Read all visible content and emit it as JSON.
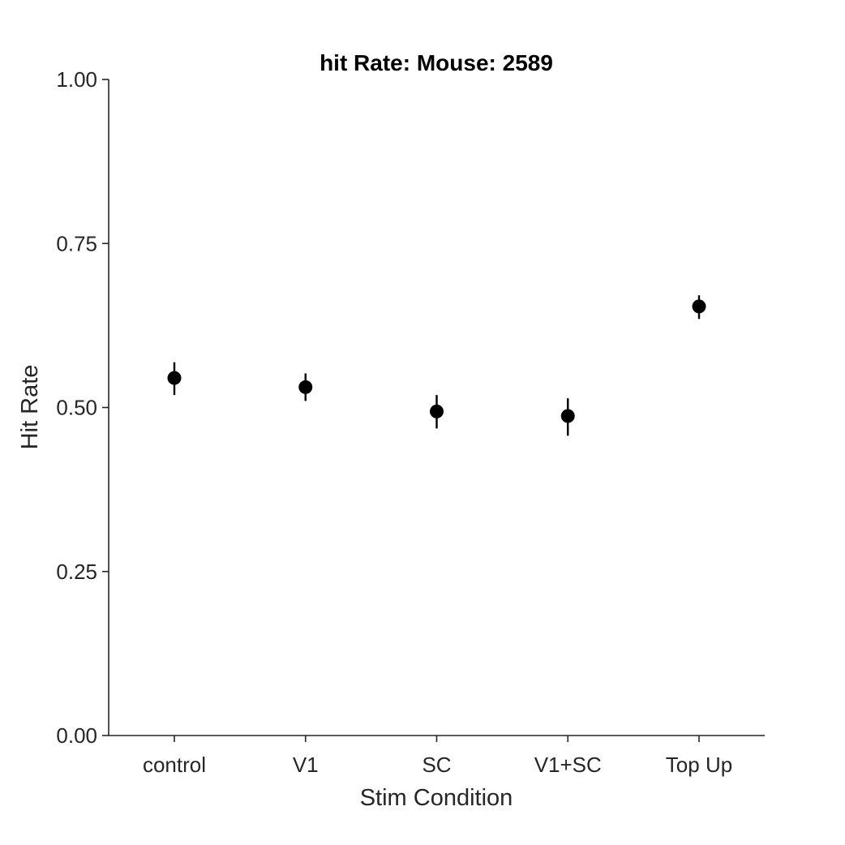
{
  "chart_data": {
    "type": "scatter",
    "title": "hit Rate: Mouse: 2589",
    "xlabel": "Stim Condition",
    "ylabel": "Hit Rate",
    "categories": [
      "control",
      "V1",
      "SC",
      "V1+SC",
      "Top Up"
    ],
    "values": [
      0.545,
      0.531,
      0.494,
      0.487,
      0.654
    ],
    "err_low": [
      0.519,
      0.51,
      0.468,
      0.457,
      0.635
    ],
    "err_high": [
      0.569,
      0.552,
      0.519,
      0.514,
      0.671
    ],
    "ylim": [
      0,
      1
    ],
    "yticks": [
      0,
      0.25,
      0.5,
      0.75,
      1
    ],
    "ytick_labels": [
      "0.00",
      "0.25",
      "0.50",
      "0.75",
      "1.00"
    ],
    "grid": false,
    "marker_color": "#000000"
  }
}
